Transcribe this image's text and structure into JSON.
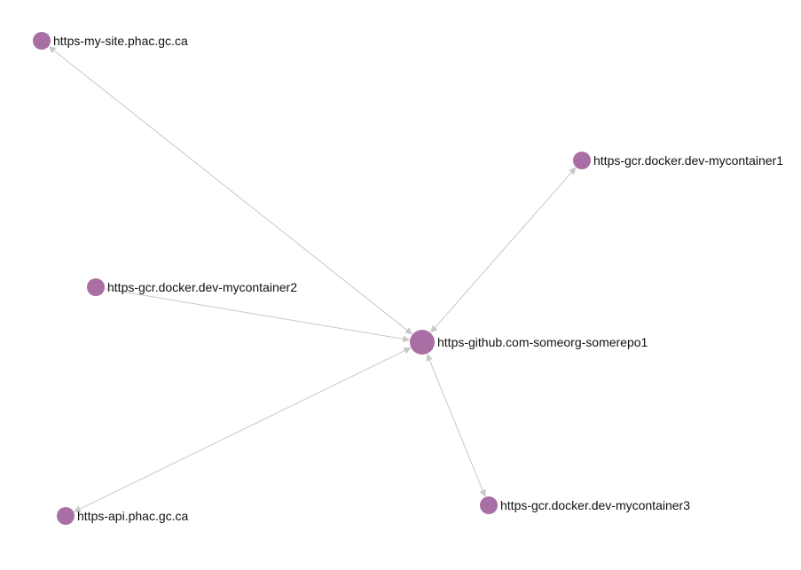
{
  "graph": {
    "colors": {
      "node": "#a96ea3",
      "edge": "#c8c8c8",
      "label": "#111111"
    },
    "nodes": [
      {
        "id": "n-github",
        "label": "https-github.com-someorg-somerepo1",
        "size": "large"
      },
      {
        "id": "n-mysite",
        "label": "https-my-site.phac.gc.ca",
        "size": "small"
      },
      {
        "id": "n-container1",
        "label": "https-gcr.docker.dev-mycontainer1",
        "size": "small"
      },
      {
        "id": "n-container2",
        "label": "https-gcr.docker.dev-mycontainer2",
        "size": "small"
      },
      {
        "id": "n-api",
        "label": "https-api.phac.gc.ca",
        "size": "small"
      },
      {
        "id": "n-container3",
        "label": "https-gcr.docker.dev-mycontainer3",
        "size": "small"
      }
    ],
    "edges": [
      {
        "from": "n-github",
        "to": "n-mysite",
        "arrows": "both"
      },
      {
        "from": "n-github",
        "to": "n-container1",
        "arrows": "both"
      },
      {
        "from": "n-container2",
        "to": "n-github",
        "arrows": "end"
      },
      {
        "from": "n-github",
        "to": "n-api",
        "arrows": "both"
      },
      {
        "from": "n-github",
        "to": "n-container3",
        "arrows": "both"
      }
    ]
  }
}
